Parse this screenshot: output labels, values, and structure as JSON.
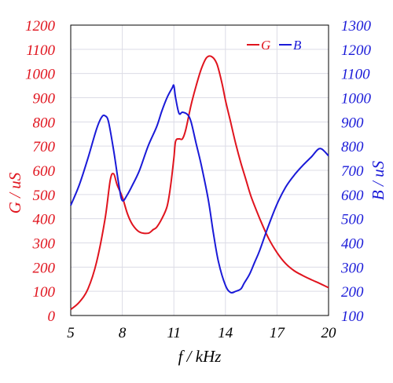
{
  "chart_data": {
    "type": "line",
    "xlabel": "f / kHz",
    "ylabel_left": "G / uS",
    "ylabel_right": "B / uS",
    "xlim": [
      5,
      20
    ],
    "ylim_left": [
      0,
      1200
    ],
    "ylim_right": [
      100,
      1300
    ],
    "xticks": [
      5,
      8,
      11,
      14,
      17,
      20
    ],
    "yticks_left": [
      0,
      100,
      200,
      300,
      400,
      500,
      600,
      700,
      800,
      900,
      1000,
      1100,
      1200
    ],
    "yticks_right": [
      100,
      200,
      300,
      400,
      500,
      600,
      700,
      800,
      900,
      1000,
      1100,
      1200,
      1300
    ],
    "grid": true,
    "legend_position": "top-right",
    "colors": {
      "G": "#e0141e",
      "B": "#1a1ad8",
      "grid": "#dcdce6"
    },
    "series": [
      {
        "name": "G",
        "axis": "left",
        "x": [
          5.0,
          5.5,
          6.0,
          6.5,
          7.0,
          7.3,
          7.5,
          7.7,
          8.0,
          8.3,
          8.6,
          9.0,
          9.5,
          9.8,
          10.0,
          10.3,
          10.6,
          10.8,
          11.0,
          11.1,
          11.3,
          11.5,
          11.7,
          12.0,
          12.3,
          12.6,
          12.9,
          13.2,
          13.5,
          13.8,
          14.0,
          14.3,
          14.6,
          14.9,
          15.2,
          15.5,
          16.0,
          16.5,
          17.0,
          17.5,
          18.0,
          18.5,
          19.0,
          19.5,
          20.0
        ],
        "y": [
          25,
          55,
          110,
          220,
          400,
          560,
          585,
          540,
          490,
          420,
          375,
          345,
          340,
          355,
          365,
          400,
          450,
          530,
          650,
          720,
          730,
          730,
          770,
          870,
          950,
          1020,
          1065,
          1070,
          1040,
          960,
          890,
          800,
          710,
          630,
          560,
          490,
          400,
          320,
          260,
          215,
          185,
          165,
          148,
          132,
          115
        ]
      },
      {
        "name": "B",
        "axis": "right",
        "x": [
          5.0,
          5.5,
          6.0,
          6.5,
          6.8,
          7.0,
          7.2,
          7.5,
          7.8,
          8.0,
          8.3,
          8.6,
          9.0,
          9.5,
          10.0,
          10.3,
          10.6,
          10.9,
          11.0,
          11.1,
          11.3,
          11.5,
          11.8,
          12.0,
          12.3,
          12.6,
          13.0,
          13.3,
          13.6,
          14.0,
          14.3,
          14.6,
          14.9,
          15.1,
          15.4,
          15.7,
          16.0,
          16.5,
          17.0,
          17.5,
          18.0,
          18.5,
          19.0,
          19.5,
          20.0
        ],
        "y": [
          555,
          640,
          750,
          870,
          920,
          925,
          900,
          780,
          640,
          575,
          600,
          640,
          700,
          800,
          880,
          945,
          1000,
          1040,
          1050,
          1000,
          935,
          940,
          930,
          900,
          810,
          720,
          580,
          440,
          320,
          225,
          195,
          200,
          210,
          235,
          270,
          320,
          370,
          470,
          560,
          630,
          680,
          720,
          755,
          790,
          760
        ]
      }
    ]
  }
}
